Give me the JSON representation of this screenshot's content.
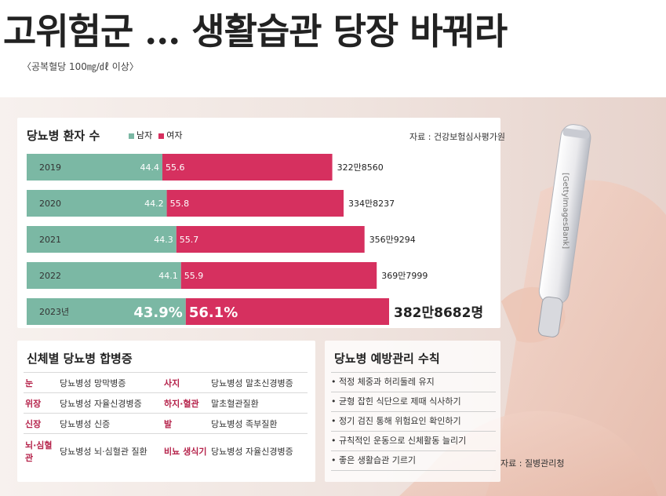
{
  "headline": "고위험군 … 생활습관 당장 바꿔라",
  "subline": "〈공복혈당 100㎎/㎗ 이상〉",
  "chart_data": {
    "type": "bar",
    "title": "당뇨병 환자 수",
    "legend": [
      "남자",
      "여자"
    ],
    "source": "자료 : 건강보험심사평가원",
    "categories": [
      "2019",
      "2020",
      "2021",
      "2022",
      "2023년"
    ],
    "series": [
      {
        "name": "남자",
        "values": [
          44.4,
          44.2,
          44.3,
          44.1,
          43.9
        ],
        "labels": [
          "44.4",
          "44.2",
          "44.3",
          "44.1",
          "43.9%"
        ]
      },
      {
        "name": "여자",
        "values": [
          55.6,
          55.8,
          55.7,
          55.9,
          56.1
        ],
        "labels": [
          "55.6",
          "55.8",
          "55.7",
          "55.9",
          "56.1%"
        ]
      }
    ],
    "totals": [
      3228560,
      3348237,
      3569294,
      3697999,
      3828682
    ],
    "total_labels": [
      "322만8560",
      "334만8237",
      "356만9294",
      "369만7999",
      "382만8682명"
    ],
    "colors": {
      "male": "#7bb8a4",
      "female": "#d6305f"
    }
  },
  "complications": {
    "title": "신체별 당뇨병 합병증",
    "rows": [
      {
        "k1": "눈",
        "v1": "당뇨병성 망막병증",
        "k2": "사지",
        "v2": "당뇨병성 말초신경병증"
      },
      {
        "k1": "위장",
        "v1": "당뇨병성 자율신경병증",
        "k2": "하지·혈관",
        "v2": "말초혈관질환"
      },
      {
        "k1": "신장",
        "v1": "당뇨병성 신증",
        "k2": "발",
        "v2": "당뇨병성 족부질환"
      },
      {
        "k1": "뇌·심혈관",
        "v1": "당뇨병성 뇌·심혈관 질환",
        "k2": "비뇨 생식기",
        "v2": "당뇨병성 자율신경병증"
      }
    ]
  },
  "prevention": {
    "title": "당뇨병 예방관리 수칙",
    "items": [
      "• 적정 체중과 허리둘레 유지",
      "• 균형 잡힌 식단으로 제때 식사하기",
      "• 정기 검진 통해 위험요인 확인하기",
      "• 규칙적인 운동으로 신체활동 늘리기",
      "• 좋은 생활습관 기르기"
    ],
    "source": "자료 : 질병관리청"
  },
  "watermark": "[GettyImagesBank]",
  "icons": [
    "lancet-photo"
  ]
}
